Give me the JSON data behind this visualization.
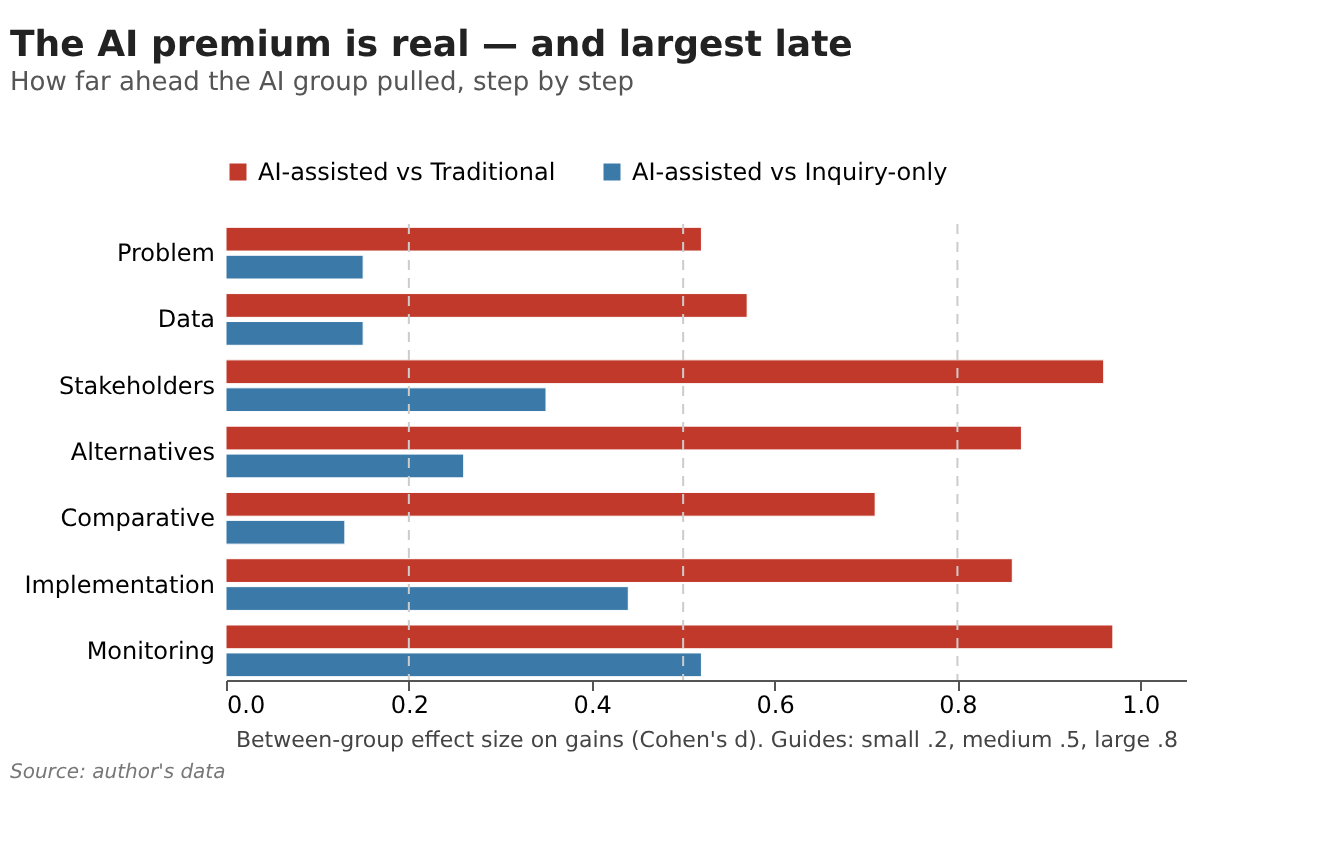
{
  "chart_data": {
    "type": "bar",
    "orientation": "horizontal",
    "title": "The AI premium is real — and largest late",
    "subtitle": "How far ahead the AI group pulled, step by step",
    "xlabel": "Between-group effect size on gains (Cohen's d).  Guides: small .2, medium .5, large .8",
    "categories": [
      "Problem",
      "Data",
      "Stakeholders",
      "Alternatives",
      "Comparative",
      "Implementation",
      "Monitoring"
    ],
    "series": [
      {
        "name": "AI-assisted vs Traditional",
        "color": "#c0392b",
        "values": [
          0.52,
          0.57,
          0.96,
          0.87,
          0.71,
          0.86,
          0.97
        ]
      },
      {
        "name": "AI-assisted vs Inquiry-only",
        "color": "#3b7aa8",
        "values": [
          0.15,
          0.15,
          0.35,
          0.26,
          0.13,
          0.44,
          0.52
        ]
      }
    ],
    "xlim": [
      0,
      1.05
    ],
    "xticks": [
      {
        "value": 0,
        "label": "0.0"
      },
      {
        "value": 0.2,
        "label": "0.2"
      },
      {
        "value": 0.4,
        "label": "0.4"
      },
      {
        "value": 0.6,
        "label": "0.6"
      },
      {
        "value": 0.8,
        "label": "0.8"
      },
      {
        "value": 1,
        "label": "1.0"
      }
    ],
    "ref_lines": [
      {
        "axis": "x",
        "value": 0.2,
        "color": "#cccccc",
        "line_style": "dashed"
      },
      {
        "axis": "x",
        "value": 0.5,
        "color": "#cccccc",
        "line_style": "dashed"
      },
      {
        "axis": "x",
        "value": 0.8,
        "color": "#cccccc",
        "line_style": "dashed"
      }
    ],
    "legend": "top",
    "grid": false,
    "annotations": [
      "Source: author's data"
    ]
  }
}
